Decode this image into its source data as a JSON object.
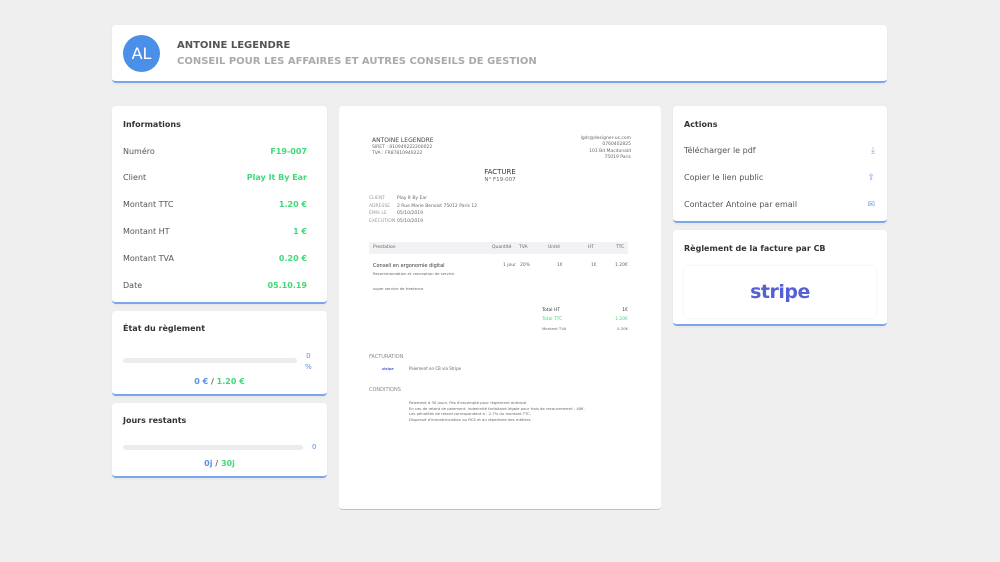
{
  "header": {
    "initials": "AL",
    "name": "ANTOINE LEGENDRE",
    "activity": "CONSEIL POUR LES AFFAIRES ET AUTRES CONSEILS DE GESTION",
    "avatar_color": "#4a90e8"
  },
  "informations": {
    "title": "Informations",
    "rows": [
      {
        "label": "Numéro",
        "value": "F19-007"
      },
      {
        "label": "Client",
        "value": "Play It By Ear"
      },
      {
        "label": "Montant TTC",
        "value": "1.20 €"
      },
      {
        "label": "Montant HT",
        "value": "1 €"
      },
      {
        "label": "Montant TVA",
        "value": "0.20 €"
      },
      {
        "label": "Date",
        "value": "05.10.19"
      }
    ]
  },
  "reglement": {
    "title": "État du règlement",
    "percent_num": "0",
    "percent_sign": "%",
    "paid": "0 €",
    "sep": "/",
    "total": "1.20 €",
    "progress": 0
  },
  "jours": {
    "title": "Jours restants",
    "count": "0",
    "elapsed": "0j",
    "sep": "/",
    "total": "30j",
    "progress": 0
  },
  "invoice": {
    "issuer": {
      "name": "ANTOINE LEGENDRE",
      "siret": "SIRET : 810949222200022",
      "tva": "TVA : FR87810949222"
    },
    "contact": {
      "email": "lgdr@designer-us.com",
      "phone": "0760402825",
      "street": "101 Bd Macdonald",
      "city": "75019 Paris"
    },
    "title": "FACTURE",
    "number": "N° F19-007",
    "meta": [
      {
        "label": "CLIENT",
        "value": "Play It By Ear"
      },
      {
        "label": "ADRESSE",
        "value": "2 Rue Marie Benoist 75012 Paris 12"
      },
      {
        "label": "ÉMIS LE",
        "value": "05/10/2019"
      },
      {
        "label": "EXÉCUTION",
        "value": "05/10/2019"
      }
    ],
    "columns": [
      "Prestation",
      "Quantité",
      "TVA",
      "Unité",
      "HT",
      "TTC"
    ],
    "line": {
      "name": "Conseil en ergonomie digital",
      "desc": "Recommandation et conception de service",
      "qty": "1 jour",
      "tva": "20%",
      "unit": "1€",
      "ht": "1€",
      "ttc": "1.20€"
    },
    "note": "super service de freelance",
    "totals": [
      {
        "label": "Total HT",
        "value": "1€"
      },
      {
        "label": "Total TTC",
        "value": "1.20€"
      },
      {
        "label": "Montant TVA",
        "value": "0.20€"
      }
    ],
    "facturation_title": "FACTURATION",
    "facturation_logo": "stripe",
    "facturation_text": "Paiement en CB via Stripe",
    "conditions_title": "CONDITIONS",
    "conditions": [
      "Paiement à 30 jours. Pas d'escompte pour règlement anticipé.",
      "En cas de retard de paiement, indemnité forfaitaire légale pour frais de recouvrement : 40€.",
      "Les pénalités de retard correspondent à : 2.7% du montant TTC.",
      "Dispensé d'immatriculation au RCS et au répertoire des métiers."
    ]
  },
  "actions": {
    "title": "Actions",
    "items": [
      {
        "label": "Télécharger le pdf",
        "icon": "download-icon"
      },
      {
        "label": "Copier le lien public",
        "icon": "share-icon"
      },
      {
        "label": "Contacter Antoine par email",
        "icon": "mail-icon"
      }
    ]
  },
  "cb": {
    "title": "Règlement de la facture par CB",
    "logo": "stripe",
    "logo_color": "#5461d6"
  }
}
